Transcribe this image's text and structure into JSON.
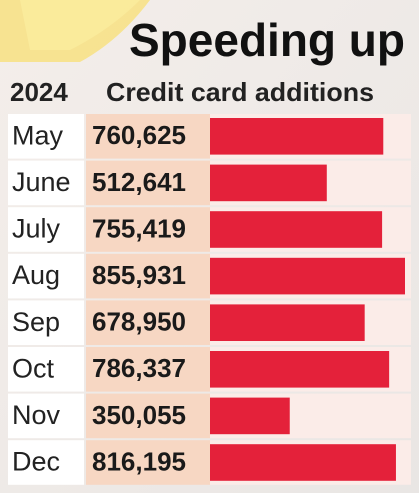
{
  "chart_data": {
    "type": "bar",
    "title": "Speeding up",
    "category_header": "2024",
    "value_header": "Credit card additions",
    "categories": [
      "May",
      "June",
      "July",
      "Aug",
      "Sep",
      "Oct",
      "Nov",
      "Dec"
    ],
    "values": [
      760625,
      512641,
      755419,
      855931,
      678950,
      786337,
      350055,
      816195
    ],
    "value_labels": [
      "760,625",
      "512,641",
      "755,419",
      "855,931",
      "678,950",
      "786,337",
      "350,055",
      "816,195"
    ],
    "color": "#e4213a"
  }
}
